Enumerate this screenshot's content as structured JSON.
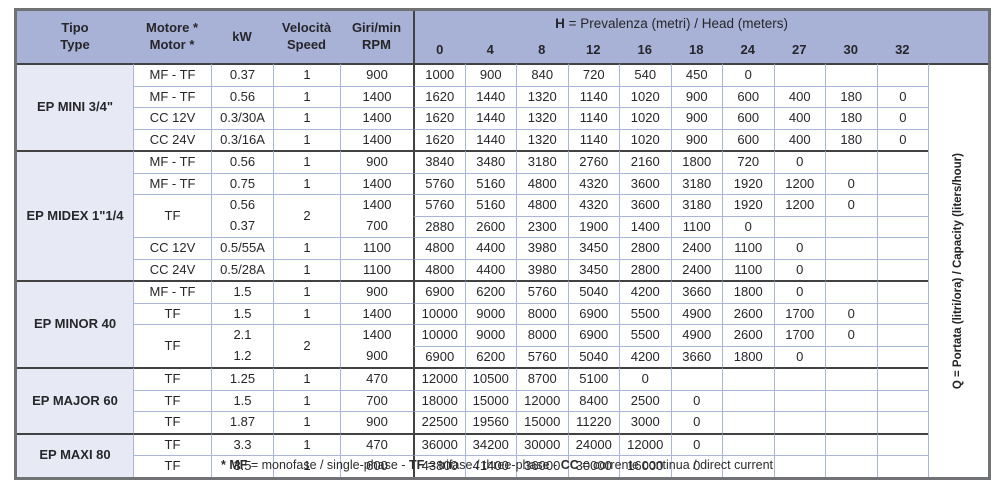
{
  "table": {
    "header": {
      "left_cols": [
        {
          "label": [
            "Tipo",
            "Type"
          ]
        },
        {
          "label": [
            "Motore *",
            "Motor *"
          ]
        },
        {
          "label": [
            "kW"
          ]
        },
        {
          "label": [
            "Velocità",
            "Speed"
          ]
        },
        {
          "label": [
            "Giri/min",
            "RPM"
          ]
        }
      ],
      "h_title_segments": [
        {
          "text": "H",
          "bold": true
        },
        {
          "text": " = Prevalenza (metri) / Head (meters)",
          "bold": false
        }
      ],
      "h_cols": [
        "0",
        "4",
        "8",
        "12",
        "16",
        "18",
        "24",
        "27",
        "30",
        "32"
      ],
      "q_label": "Q = Portata (litri/ora) / Capacity (liters/hour)"
    },
    "groups": [
      {
        "type": "EP MINI 3/4\"",
        "rows": [
          {
            "motor": "MF - TF",
            "kw": "0.37",
            "speed": "1",
            "rpm": "900",
            "values": [
              "1000",
              "900",
              "840",
              "720",
              "540",
              "450",
              "0",
              "",
              "",
              ""
            ]
          },
          {
            "motor": "MF - TF",
            "kw": "0.56",
            "speed": "1",
            "rpm": "1400",
            "values": [
              "1620",
              "1440",
              "1320",
              "1140",
              "1020",
              "900",
              "600",
              "400",
              "180",
              "0"
            ]
          },
          {
            "motor": "CC 12V",
            "kw": "0.3/30A",
            "speed": "1",
            "rpm": "1400",
            "values": [
              "1620",
              "1440",
              "1320",
              "1140",
              "1020",
              "900",
              "600",
              "400",
              "180",
              "0"
            ]
          },
          {
            "motor": "CC 24V",
            "kw": "0.3/16A",
            "speed": "1",
            "rpm": "1400",
            "values": [
              "1620",
              "1440",
              "1320",
              "1140",
              "1020",
              "900",
              "600",
              "400",
              "180",
              "0"
            ]
          }
        ]
      },
      {
        "type": "EP MIDEX 1\"1/4",
        "rows": [
          {
            "motor": "MF - TF",
            "kw": "0.56",
            "speed": "1",
            "rpm": "900",
            "values": [
              "3840",
              "3480",
              "3180",
              "2760",
              "2160",
              "1800",
              "720",
              "0",
              "",
              ""
            ]
          },
          {
            "motor": "MF - TF",
            "kw": "0.75",
            "speed": "1",
            "rpm": "1400",
            "values": [
              "5760",
              "5160",
              "4800",
              "4320",
              "3600",
              "3180",
              "1920",
              "1200",
              "0",
              ""
            ]
          },
          {
            "motor": "TF",
            "kw": "0.56",
            "speed": "2",
            "rpm": "1400",
            "span": 2,
            "values": [
              "5760",
              "5160",
              "4800",
              "4320",
              "3600",
              "3180",
              "1920",
              "1200",
              "0",
              ""
            ]
          },
          {
            "kw": "0.37",
            "rpm": "700",
            "values": [
              "2880",
              "2600",
              "2300",
              "1900",
              "1400",
              "1100",
              "0",
              "",
              "",
              ""
            ]
          },
          {
            "motor": "CC 12V",
            "kw": "0.5/55A",
            "speed": "1",
            "rpm": "1100",
            "values": [
              "4800",
              "4400",
              "3980",
              "3450",
              "2800",
              "2400",
              "1100",
              "0",
              "",
              ""
            ]
          },
          {
            "motor": "CC 24V",
            "kw": "0.5/28A",
            "speed": "1",
            "rpm": "1100",
            "values": [
              "4800",
              "4400",
              "3980",
              "3450",
              "2800",
              "2400",
              "1100",
              "0",
              "",
              ""
            ]
          }
        ]
      },
      {
        "type": "EP MINOR 40",
        "rows": [
          {
            "motor": "MF - TF",
            "kw": "1.5",
            "speed": "1",
            "rpm": "900",
            "values": [
              "6900",
              "6200",
              "5760",
              "5040",
              "4200",
              "3660",
              "1800",
              "0",
              "",
              ""
            ]
          },
          {
            "motor": "TF",
            "kw": "1.5",
            "speed": "1",
            "rpm": "1400",
            "values": [
              "10000",
              "9000",
              "8000",
              "6900",
              "5500",
              "4900",
              "2600",
              "1700",
              "0",
              ""
            ]
          },
          {
            "motor": "TF",
            "kw": "2.1",
            "speed": "2",
            "rpm": "1400",
            "span": 2,
            "values": [
              "10000",
              "9000",
              "8000",
              "6900",
              "5500",
              "4900",
              "2600",
              "1700",
              "0",
              ""
            ]
          },
          {
            "kw": "1.2",
            "rpm": "900",
            "values": [
              "6900",
              "6200",
              "5760",
              "5040",
              "4200",
              "3660",
              "1800",
              "0",
              "",
              ""
            ]
          }
        ]
      },
      {
        "type": "EP MAJOR 60",
        "rows": [
          {
            "motor": "TF",
            "kw": "1.25",
            "speed": "1",
            "rpm": "470",
            "values": [
              "12000",
              "10500",
              "8700",
              "5100",
              "0",
              "",
              "",
              "",
              "",
              ""
            ]
          },
          {
            "motor": "TF",
            "kw": "1.5",
            "speed": "1",
            "rpm": "700",
            "values": [
              "18000",
              "15000",
              "12000",
              "8400",
              "2500",
              "0",
              "",
              "",
              "",
              ""
            ]
          },
          {
            "motor": "TF",
            "kw": "1.87",
            "speed": "1",
            "rpm": "900",
            "values": [
              "22500",
              "19560",
              "15000",
              "11220",
              "3000",
              "0",
              "",
              "",
              "",
              ""
            ]
          }
        ]
      },
      {
        "type": "EP MAXI 80",
        "rows": [
          {
            "motor": "TF",
            "kw": "3.3",
            "speed": "1",
            "rpm": "470",
            "values": [
              "36000",
              "34200",
              "30000",
              "24000",
              "12000",
              "0",
              "",
              "",
              "",
              ""
            ]
          },
          {
            "motor": "TF",
            "kw": "3.5",
            "speed": "1",
            "rpm": "600",
            "values": [
              "43800",
              "41400",
              "36000",
              "30000",
              "16000",
              "0",
              "",
              "",
              "",
              ""
            ]
          }
        ]
      }
    ]
  },
  "footnote": {
    "segments": [
      {
        "text": "* MF",
        "bold": true
      },
      {
        "text": " = monofase / single-phase - ",
        "bold": false
      },
      {
        "text": "TF",
        "bold": true
      },
      {
        "text": " = trifase / three-phase - ",
        "bold": false
      },
      {
        "text": "CC",
        "bold": true
      },
      {
        "text": " = corrente continua / direct current",
        "bold": false
      }
    ]
  },
  "colors": {
    "header_bg": "#a8b2d6",
    "group_cell_bg": "#e7eaf4",
    "grid_light": "#aab5d8",
    "grid_dark": "#424245",
    "outer_border": "#717275"
  }
}
